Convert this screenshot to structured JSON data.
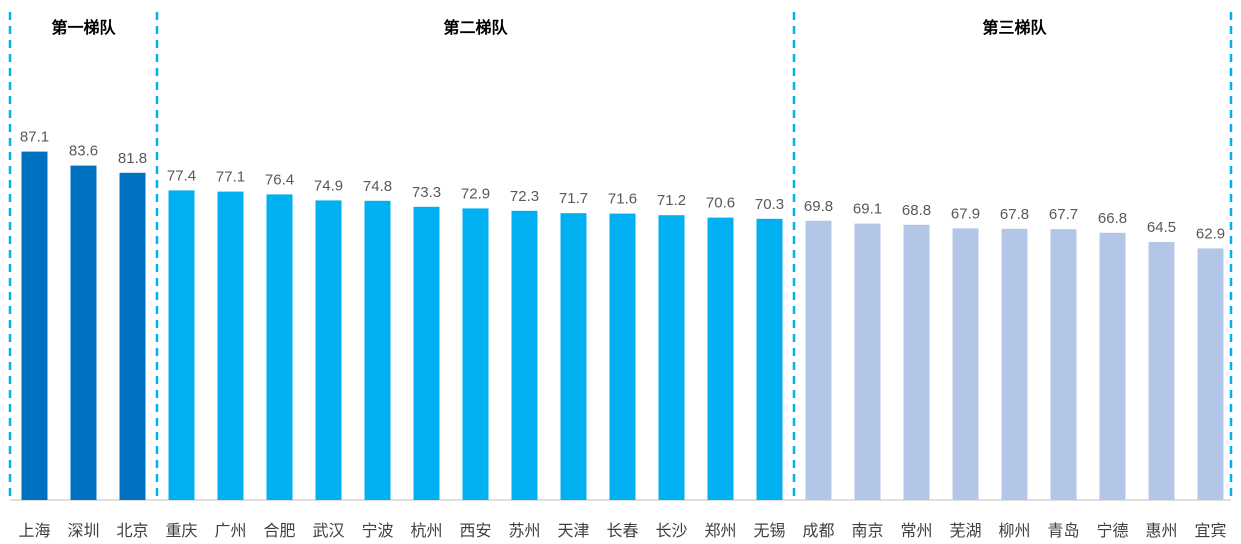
{
  "chart_data": {
    "type": "bar",
    "groups": [
      {
        "title": "第一梯队",
        "color": "#0070C0",
        "categories": [
          "上海",
          "深圳",
          "北京"
        ],
        "values": [
          87.1,
          83.6,
          81.8
        ]
      },
      {
        "title": "第二梯队",
        "color": "#00B0F0",
        "categories": [
          "重庆",
          "广州",
          "合肥",
          "武汉",
          "宁波",
          "杭州",
          "西安",
          "苏州",
          "天津",
          "长春",
          "长沙",
          "郑州",
          "无锡"
        ],
        "values": [
          77.4,
          77.1,
          76.4,
          74.9,
          74.8,
          73.3,
          72.9,
          72.3,
          71.7,
          71.6,
          71.2,
          70.6,
          70.3
        ]
      },
      {
        "title": "第三梯队",
        "color": "#B4C6E7",
        "categories": [
          "成都",
          "南京",
          "常州",
          "芜湖",
          "柳州",
          "青岛",
          "宁德",
          "惠州",
          "宜宾"
        ],
        "values": [
          69.8,
          69.1,
          68.8,
          67.9,
          67.8,
          67.7,
          66.8,
          64.5,
          62.9
        ]
      }
    ],
    "ylim": [
      0,
      100
    ],
    "grid": false,
    "separator_color": "#00B0F0",
    "value_labels": true
  }
}
